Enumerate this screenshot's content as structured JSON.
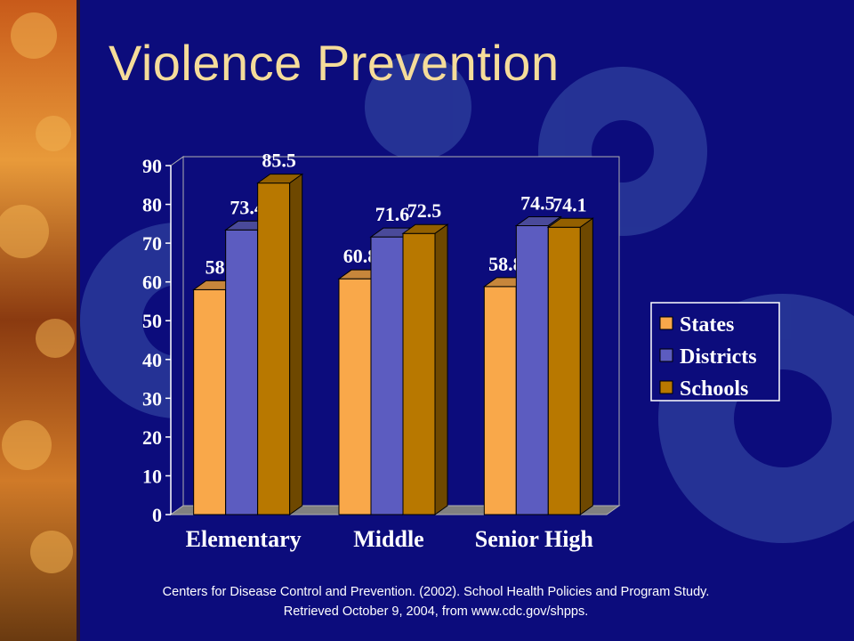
{
  "slide": {
    "title": "Violence Prevention",
    "citation": "Centers for Disease Control and Prevention. (2002). School Health Policies and Program Study. Retrieved October 9, 2004, from www.cdc.gov/shpps."
  },
  "colors": {
    "background": "#0c0c7c",
    "title": "#f5dc9a",
    "gear": "#2a3a9a"
  },
  "chart_data": {
    "type": "bar",
    "categories": [
      "Elementary",
      "Middle",
      "Senior High"
    ],
    "series": [
      {
        "name": "States",
        "values": [
          58,
          60.8,
          58.8
        ],
        "color": "#f9a84a"
      },
      {
        "name": "Districts",
        "values": [
          73.4,
          71.6,
          74.5
        ],
        "color": "#5c5cc0"
      },
      {
        "name": "Schools",
        "values": [
          85.5,
          72.5,
          74.1
        ],
        "color": "#b87800"
      }
    ],
    "yticks": [
      0,
      10,
      20,
      30,
      40,
      50,
      60,
      70,
      80,
      90
    ],
    "ylim": [
      0,
      90
    ],
    "title": "",
    "xlabel": "",
    "ylabel": "",
    "grid": false,
    "legend": "right",
    "three_d": true
  }
}
